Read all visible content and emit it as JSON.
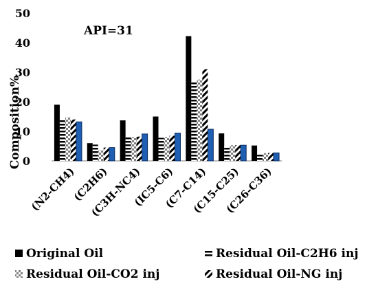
{
  "chart_data": {
    "type": "bar",
    "title": "",
    "annotation": "API=31",
    "ylabel": "Composition%",
    "xlabel": "",
    "ylim": [
      0,
      50
    ],
    "yticks": [
      "0",
      "10",
      "20",
      "30",
      "40",
      "50"
    ],
    "grid": false,
    "legend_position": "bottom",
    "categories": [
      "(N2-CH4)",
      "(C2H6)",
      "(C3H-NC4)",
      "(IC5-C6)",
      "(C7-C14)",
      "(C15-C25)",
      "(C26-C36)"
    ],
    "series": [
      {
        "name": "Original Oil",
        "pattern": "solid-black",
        "values": [
          19,
          6,
          13.7,
          15,
          42.2,
          9.3,
          5.2
        ]
      },
      {
        "name": "Residual Oil-C2H6 inj",
        "pattern": "horizontal-stripes",
        "values": [
          13.8,
          5.5,
          8,
          7.8,
          26.8,
          5,
          2.5
        ]
      },
      {
        "name": "Residual Oil-CO2 inj",
        "pattern": "checker-gray",
        "values": [
          14.7,
          3.6,
          8,
          8,
          27.5,
          5.3,
          2.6
        ]
      },
      {
        "name": "Residual Oil-NG inj",
        "pattern": "diagonal-hatch",
        "values": [
          14,
          4.5,
          8.2,
          8.5,
          31,
          5.3,
          2.7
        ]
      },
      {
        "name": "",
        "pattern": "solid-blue",
        "values": [
          13.2,
          4.5,
          9.1,
          9.4,
          10.7,
          5.3,
          2.7
        ]
      }
    ]
  },
  "colors": {
    "black": "#000000",
    "blue": "#1f5fb3",
    "blue_edge": "#0b2c5e",
    "gray": "#8c8c8c"
  }
}
